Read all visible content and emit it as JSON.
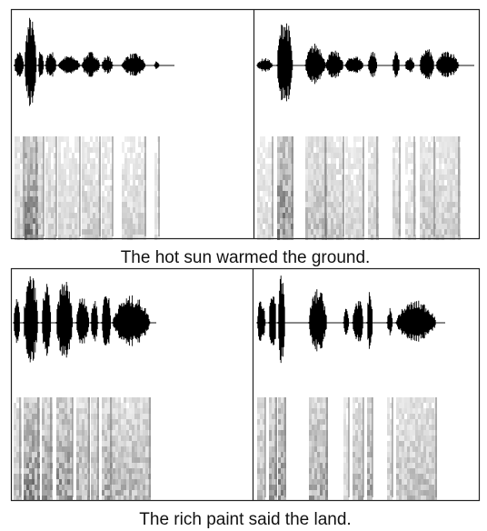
{
  "panels": [
    {
      "caption": "The hot sun warmed the ground."
    },
    {
      "caption": "The rich paint said the land."
    }
  ]
}
